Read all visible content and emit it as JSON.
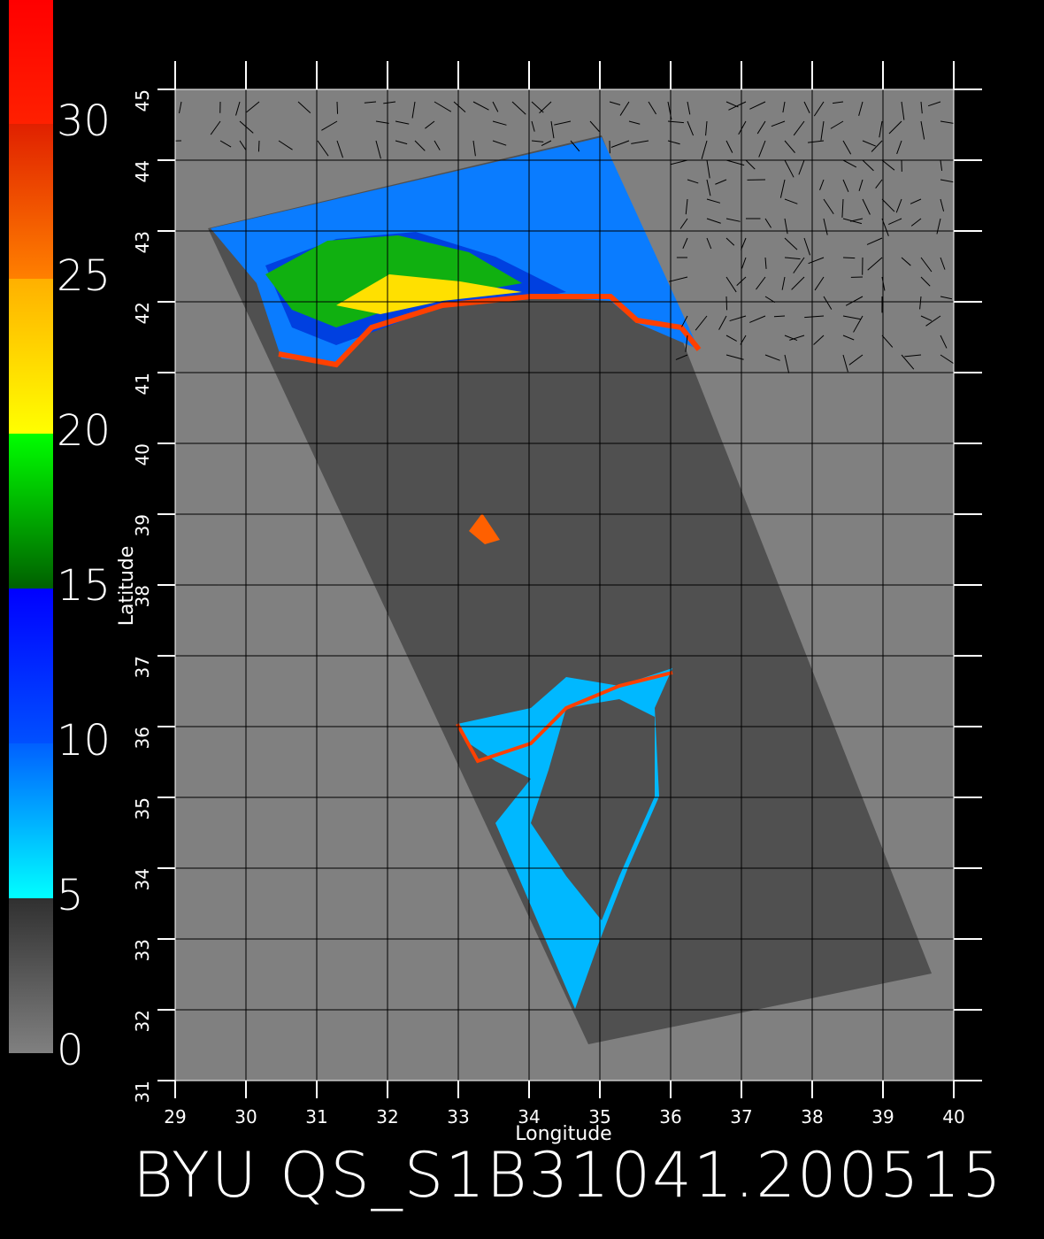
{
  "map": {
    "title": "BYU QS_S1B31041.200515",
    "xlabel": "Longitude",
    "ylabel": "Latitude",
    "xlim": [
      29,
      40
    ],
    "ylim": [
      31,
      45
    ],
    "xticks": [
      29,
      30,
      31,
      32,
      33,
      34,
      35,
      36,
      37,
      38,
      39,
      40
    ],
    "yticks": [
      31,
      32,
      33,
      34,
      35,
      36,
      37,
      38,
      39,
      40,
      41,
      42,
      43,
      44,
      45
    ],
    "grid": true,
    "colorbar": {
      "lim": [
        0,
        34
      ],
      "ticks": [
        0,
        5,
        10,
        15,
        20,
        25,
        30
      ],
      "colors": [
        [
          "#808080",
          "#303030"
        ],
        [
          "#00ffff",
          "#0060ff"
        ],
        [
          "#0050ff",
          "#0000ff"
        ],
        [
          "#006000",
          "#00ff00"
        ],
        [
          "#ffff00",
          "#ffb000"
        ],
        [
          "#ff8000",
          "#e02000"
        ],
        [
          "#ff2000",
          "#ff0000"
        ]
      ]
    }
  }
}
